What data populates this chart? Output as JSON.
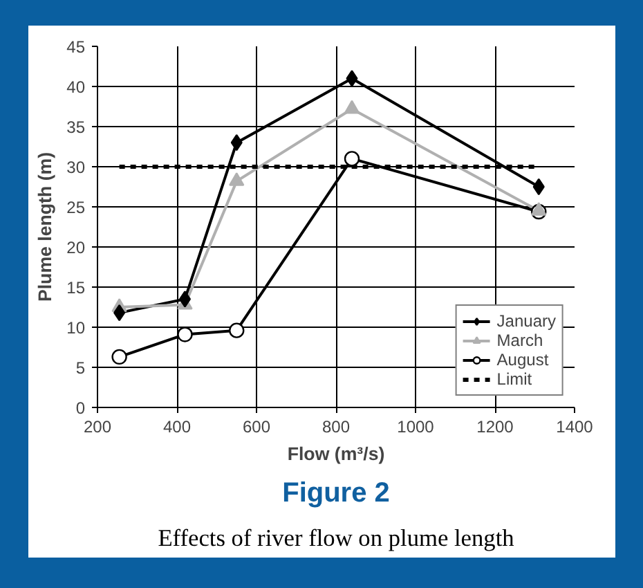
{
  "chart_data": {
    "type": "line",
    "title": "Figure 2",
    "subtitle": "Effects of river flow on plume length",
    "xlabel": "Flow (m³/s)",
    "ylabel": "Plume length (m)",
    "xlim": [
      200,
      1400
    ],
    "xticks": [
      200,
      400,
      600,
      800,
      1000,
      1200,
      1400
    ],
    "ylim": [
      0,
      45
    ],
    "yticks": [
      0,
      5,
      10,
      15,
      20,
      25,
      30,
      35,
      40,
      45
    ],
    "grid": true,
    "legend": "bottom right",
    "series": [
      {
        "name": "January",
        "color": "#000000",
        "marker": "diamond",
        "x": [
          255,
          420,
          550,
          840,
          1310
        ],
        "values": [
          11.8,
          13.5,
          33,
          41,
          27.5
        ]
      },
      {
        "name": "March",
        "color": "#b0b0b0",
        "marker": "triangle",
        "x": [
          255,
          420,
          550,
          840,
          1310
        ],
        "values": [
          12.5,
          12.8,
          28.2,
          37.2,
          24.5
        ]
      },
      {
        "name": "August",
        "color": "#000000",
        "marker": "circle",
        "x": [
          255,
          420,
          550,
          840,
          1310
        ],
        "values": [
          6.3,
          9.1,
          9.6,
          31,
          24.4
        ]
      },
      {
        "name": "Limit",
        "color": "#000000",
        "marker": "none",
        "line_style": "dashed",
        "x": [
          255,
          1310
        ],
        "values": [
          30,
          30
        ]
      }
    ]
  }
}
